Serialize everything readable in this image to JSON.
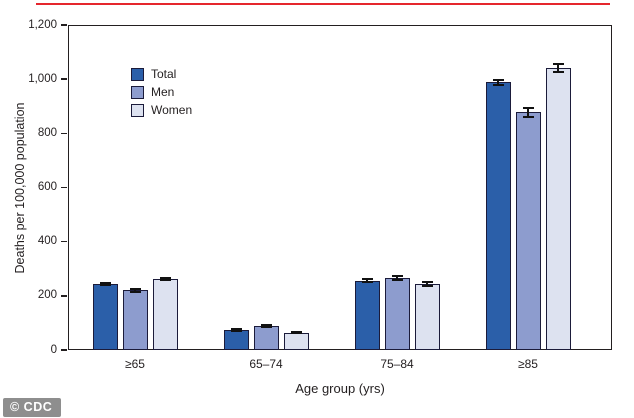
{
  "watermark": {
    "label": "© CDC"
  },
  "decor": {
    "top_rule_color": "#e5262d"
  },
  "chart_data": {
    "type": "bar",
    "title": "",
    "categories": [
      "≥65",
      "65–74",
      "75–84",
      "≥85"
    ],
    "series": [
      {
        "name": "Total",
        "color": "#2b5fa9",
        "values": [
          245,
          74,
          256,
          988
        ],
        "error": [
          4,
          3,
          6,
          8
        ]
      },
      {
        "name": "Men",
        "color": "#8d9cce",
        "values": [
          220,
          88,
          265,
          878
        ],
        "error": [
          4,
          4,
          7,
          16
        ]
      },
      {
        "name": "Women",
        "color": "#dde2f0",
        "values": [
          262,
          64,
          245,
          1042
        ],
        "error": [
          5,
          3,
          7,
          14
        ]
      }
    ],
    "xlabel": "Age group (yrs)",
    "ylabel": "Deaths per 100,000 population",
    "ylim": [
      0,
      1200
    ],
    "yticks": [
      0,
      200,
      400,
      600,
      800,
      1000,
      1200
    ],
    "ytick_labels": [
      "0",
      "200",
      "400",
      "600",
      "800",
      "1,000",
      "1,200"
    ],
    "legend_position": "upper-left-inside",
    "grid": false,
    "error_bars": true,
    "axis_color": "#231f20",
    "bar_outline_color": "#1b1b3a"
  }
}
